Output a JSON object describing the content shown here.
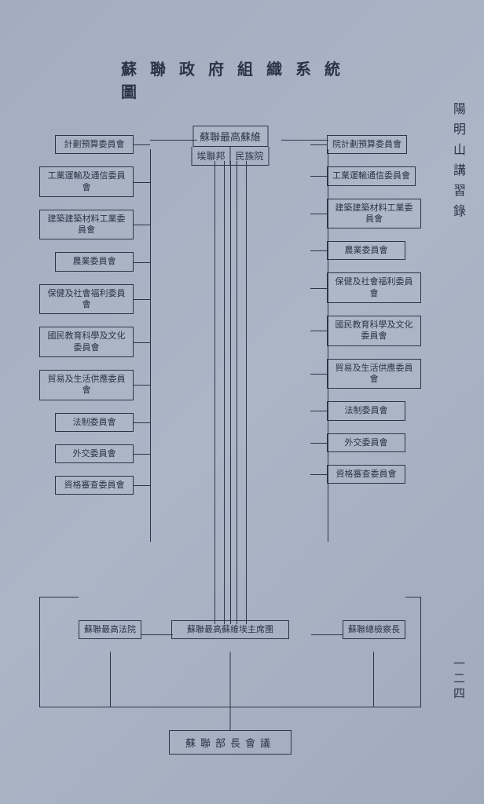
{
  "colors": {
    "background": "#a8b4c4",
    "line": "#2a3648",
    "text": "#2a3648"
  },
  "typography": {
    "title_fontsize": 20,
    "node_fontsize": 11,
    "label_fontsize": 16
  },
  "title": "蘇 聯 政 府 組 織 系 統 圖",
  "side_label": "陽明山講習錄",
  "page_number": "一二四",
  "top_node": {
    "header": "蘇聯最高蘇維",
    "left": "埃聯邦",
    "right": "民族院"
  },
  "right_column": [
    "院計劃預算委員會",
    "工業運輸通信委員會",
    "建築建築材料工業委員會",
    "農業委員會",
    "保健及社會福利委員會",
    "國民教育科學及文化委員會",
    "貿易及生活供應委員會",
    "法制委員會",
    "外交委員會",
    "資格審查委員會"
  ],
  "left_column": [
    "計劃預算委員會",
    "工業運輸及通信委員會",
    "建築建築材料工業委員會",
    "農業委員會",
    "保健及社會福利委員會",
    "國民教育科學及文化委員會",
    "貿易及生活供應委員會",
    "法制委員會",
    "外交委員會",
    "資格審查委員會"
  ],
  "middle_row": {
    "left": "蘇聯最高法院",
    "center": "蘇聯最高蘇維埃主席團",
    "right": "蘇聯總檢察長"
  },
  "bottom_node": "蘇聯部長會議",
  "structure_type": "org-chart"
}
